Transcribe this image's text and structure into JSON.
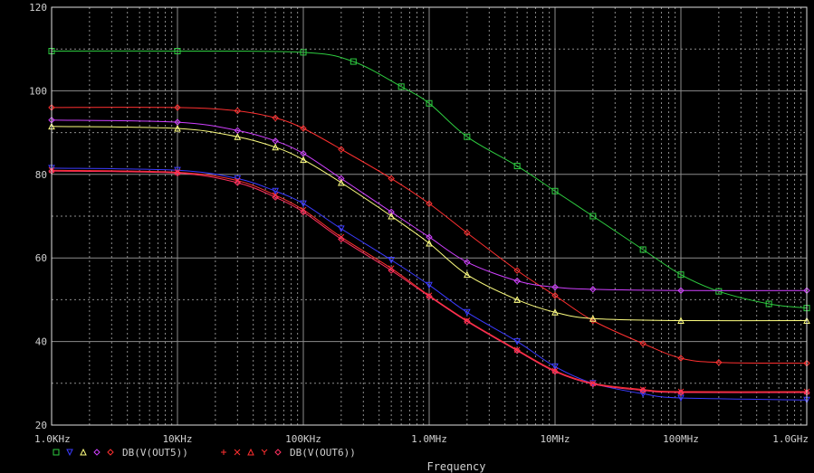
{
  "colors": {
    "background": "#000000",
    "grid": "#8c8c8c",
    "frame": "#e0e0e0",
    "text": "#d0d0d0"
  },
  "chart_data": {
    "type": "line",
    "x_scale": "log",
    "xlim": [
      1000,
      1000000000
    ],
    "ylim": [
      20,
      120
    ],
    "grid": true,
    "xlabel": "Frequency",
    "ylabel": "",
    "x_tick_labels": [
      "1.0KHz",
      "10KHz",
      "100KHz",
      "1.0MHz",
      "10MHz",
      "100MHz",
      "1.0GHz"
    ],
    "x_tick_values": [
      1000,
      10000,
      100000,
      1000000,
      10000000,
      100000000,
      1000000000
    ],
    "y_tick_labels": [
      "20",
      "40",
      "60",
      "80",
      "100",
      "120"
    ],
    "y_tick_values": [
      20,
      40,
      60,
      80,
      100,
      120
    ],
    "legend": [
      {
        "symbols": [
          "square",
          "triangle-down",
          "triangle-up",
          "diamond",
          "diamond"
        ],
        "symbol_colors": [
          "#2ecc40",
          "#3b3bff",
          "#ffff80",
          "#d040ff",
          "#ff3030"
        ],
        "label": "DB(V(OUT5))"
      },
      {
        "symbols": [
          "plus",
          "x",
          "triangle-up",
          "y",
          "diamond"
        ],
        "symbol_colors": [
          "#ff3030",
          "#ff3030",
          "#ff3030",
          "#ff3030",
          "#ff3060"
        ],
        "label": "DB(V(OUT6))"
      }
    ],
    "series": [
      {
        "color": "#2ecc40",
        "marker": "square",
        "points": [
          [
            1000,
            109.5
          ],
          [
            10000,
            109.5
          ],
          [
            100000,
            109.2
          ],
          [
            250000,
            107
          ],
          [
            600000,
            101
          ],
          [
            1000000,
            97
          ],
          [
            2000000,
            89
          ],
          [
            5000000,
            82
          ],
          [
            10000000,
            76
          ],
          [
            20000000,
            70
          ],
          [
            50000000,
            62
          ],
          [
            100000000,
            56
          ],
          [
            200000000,
            52
          ],
          [
            500000000,
            49
          ],
          [
            1000000000,
            48
          ]
        ]
      },
      {
        "color": "#ff3030",
        "marker": "diamond",
        "points": [
          [
            1000,
            96
          ],
          [
            10000,
            96
          ],
          [
            30000,
            95.2
          ],
          [
            60000,
            93.5
          ],
          [
            100000,
            91
          ],
          [
            200000,
            86
          ],
          [
            500000,
            79
          ],
          [
            1000000,
            73
          ],
          [
            2000000,
            66
          ],
          [
            5000000,
            57
          ],
          [
            10000000,
            51
          ],
          [
            20000000,
            45
          ],
          [
            50000000,
            39.5
          ],
          [
            100000000,
            36
          ],
          [
            200000000,
            35
          ],
          [
            1000000000,
            34.8
          ]
        ]
      },
      {
        "color": "#d040ff",
        "marker": "diamond",
        "points": [
          [
            1000,
            93
          ],
          [
            10000,
            92.5
          ],
          [
            30000,
            90.5
          ],
          [
            60000,
            88
          ],
          [
            100000,
            85
          ],
          [
            200000,
            79
          ],
          [
            500000,
            71
          ],
          [
            1000000,
            65
          ],
          [
            2000000,
            59
          ],
          [
            5000000,
            54.5
          ],
          [
            10000000,
            53
          ],
          [
            20000000,
            52.5
          ],
          [
            100000000,
            52.2
          ],
          [
            1000000000,
            52.2
          ]
        ]
      },
      {
        "color": "#ffff80",
        "marker": "triangle-up",
        "points": [
          [
            1000,
            91.5
          ],
          [
            10000,
            91
          ],
          [
            30000,
            89
          ],
          [
            60000,
            86.5
          ],
          [
            100000,
            83.5
          ],
          [
            200000,
            78
          ],
          [
            500000,
            70
          ],
          [
            1000000,
            63.5
          ],
          [
            2000000,
            56
          ],
          [
            5000000,
            50
          ],
          [
            10000000,
            47
          ],
          [
            20000000,
            45.5
          ],
          [
            100000000,
            45
          ],
          [
            1000000000,
            45
          ]
        ]
      },
      {
        "color": "#3b3bff",
        "marker": "triangle-down",
        "points": [
          [
            1000,
            81.5
          ],
          [
            10000,
            81
          ],
          [
            30000,
            79
          ],
          [
            60000,
            76
          ],
          [
            100000,
            73
          ],
          [
            200000,
            67
          ],
          [
            500000,
            59.5
          ],
          [
            1000000,
            53.5
          ],
          [
            2000000,
            47
          ],
          [
            5000000,
            40
          ],
          [
            10000000,
            34
          ],
          [
            20000000,
            30
          ],
          [
            50000000,
            27.5
          ],
          [
            100000000,
            26.5
          ],
          [
            1000000000,
            26
          ]
        ]
      },
      {
        "color": "#ff3030",
        "marker": "x",
        "points": [
          [
            1000,
            81
          ],
          [
            10000,
            80.5
          ],
          [
            30000,
            78.5
          ],
          [
            60000,
            75
          ],
          [
            100000,
            71.5
          ],
          [
            200000,
            65
          ],
          [
            500000,
            57.5
          ],
          [
            1000000,
            51
          ],
          [
            2000000,
            45
          ],
          [
            5000000,
            38
          ],
          [
            10000000,
            33
          ],
          [
            20000000,
            30
          ],
          [
            50000000,
            28.5
          ],
          [
            100000000,
            28
          ],
          [
            1000000000,
            28
          ]
        ]
      },
      {
        "color": "#ff3060",
        "marker": "diamond",
        "points": [
          [
            1000,
            80.8
          ],
          [
            10000,
            80.3
          ],
          [
            30000,
            78
          ],
          [
            60000,
            74.5
          ],
          [
            100000,
            71
          ],
          [
            200000,
            64.5
          ],
          [
            500000,
            57
          ],
          [
            1000000,
            50.8
          ],
          [
            2000000,
            44.8
          ],
          [
            5000000,
            37.8
          ],
          [
            10000000,
            32.8
          ],
          [
            20000000,
            29.8
          ],
          [
            50000000,
            28.3
          ],
          [
            100000000,
            27.8
          ],
          [
            1000000000,
            27.8
          ]
        ]
      }
    ]
  }
}
